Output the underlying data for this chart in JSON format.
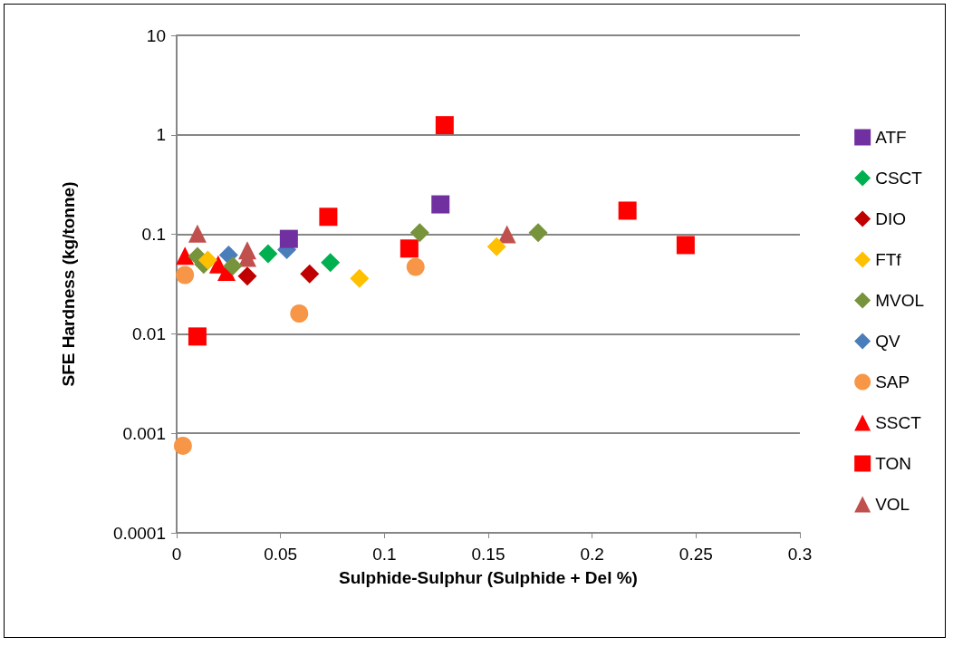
{
  "chart_data": {
    "type": "scatter",
    "xlabel": "Sulphide-Sulphur (Sulphide + Del %)",
    "ylabel": "SFE Hardness (kg/tonne)",
    "xlim": [
      0,
      0.3
    ],
    "xticks": [
      0,
      0.05,
      0.1,
      0.15,
      0.2,
      0.25,
      0.3
    ],
    "ylim": [
      0.0001,
      10
    ],
    "yticks": [
      0.0001,
      0.001,
      0.01,
      0.1,
      1,
      10
    ],
    "log": "y",
    "grid": "y",
    "legend": "right",
    "series": [
      {
        "name": "ATF",
        "color": "#7030a0",
        "marker": "square",
        "x": [
          0.054,
          0.127
        ],
        "values": [
          0.09,
          0.2
        ]
      },
      {
        "name": "CSCT",
        "color": "#00b050",
        "marker": "diamond",
        "x": [
          0.044,
          0.074
        ],
        "values": [
          0.064,
          0.052
        ]
      },
      {
        "name": "DIO",
        "color": "#c00000",
        "marker": "diamond",
        "x": [
          0.034,
          0.064
        ],
        "values": [
          0.038,
          0.04
        ]
      },
      {
        "name": "FTf",
        "color": "#ffc000",
        "marker": "diamond",
        "x": [
          0.015,
          0.088,
          0.154
        ],
        "values": [
          0.055,
          0.036,
          0.075
        ]
      },
      {
        "name": "MVOL",
        "color": "#77933c",
        "marker": "diamond",
        "x": [
          0.01,
          0.013,
          0.027,
          0.117,
          0.174
        ],
        "values": [
          0.06,
          0.05,
          0.048,
          0.104,
          0.104
        ]
      },
      {
        "name": "QV",
        "color": "#4a7ebb",
        "marker": "diamond",
        "x": [
          0.025,
          0.053
        ],
        "values": [
          0.062,
          0.07
        ]
      },
      {
        "name": "SAP",
        "color": "#f79646",
        "marker": "circle",
        "x": [
          0.004,
          0.059,
          0.115,
          0.003
        ],
        "values": [
          0.039,
          0.016,
          0.047,
          0.00075
        ]
      },
      {
        "name": "SSCT",
        "color": "#ff0000",
        "marker": "triangle",
        "x": [
          0.004,
          0.02,
          0.024
        ],
        "values": [
          0.061,
          0.05,
          0.042
        ]
      },
      {
        "name": "TON",
        "color": "#ff0000",
        "marker": "square",
        "x": [
          0.01,
          0.129,
          0.073,
          0.112,
          0.217,
          0.245
        ],
        "values": [
          0.0094,
          1.25,
          0.15,
          0.072,
          0.173,
          0.078
        ]
      },
      {
        "name": "VOL",
        "color": "#c0504d",
        "marker": "triangle",
        "x": [
          0.01,
          0.034,
          0.034,
          0.159
        ],
        "values": [
          0.102,
          0.069,
          0.058,
          0.1
        ]
      }
    ]
  }
}
